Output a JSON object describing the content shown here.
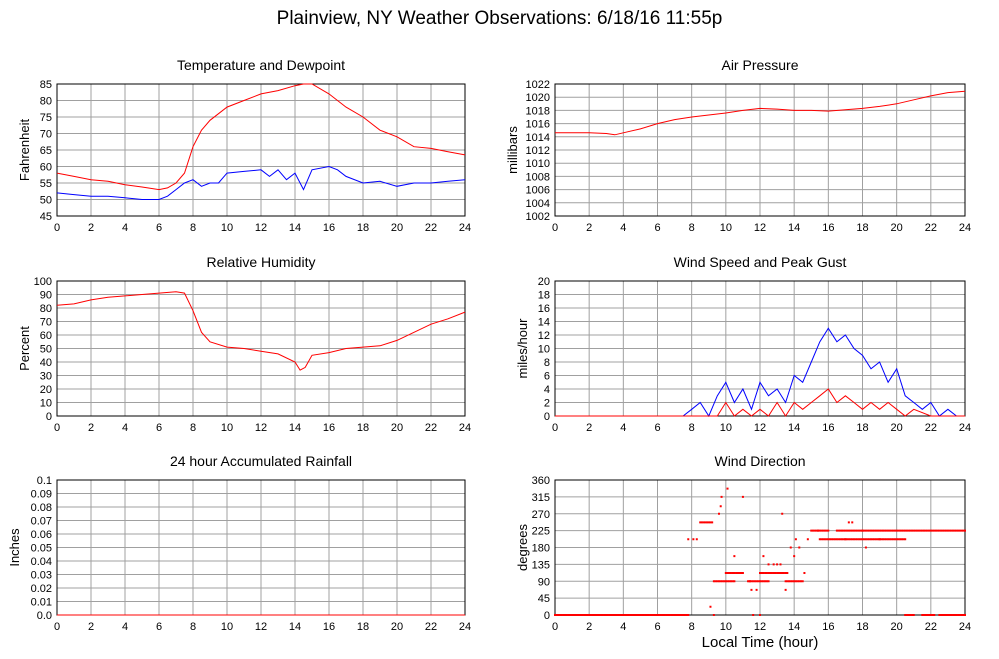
{
  "page": {
    "title": "Plainview, NY Weather Observations: 6/18/16 11:55p",
    "shared_xlabel": "Local Time (hour)"
  },
  "colors": {
    "red": "#ff0000",
    "blue": "#0000ff",
    "grid": "#a0a0a0"
  },
  "chart_data": [
    {
      "id": "temp",
      "type": "line",
      "title": "Temperature and Dewpoint",
      "ylabel": "Fahrenheit",
      "xlim": [
        0,
        24
      ],
      "ylim": [
        45,
        85
      ],
      "x_ticks": [
        0,
        2,
        4,
        6,
        8,
        10,
        12,
        14,
        16,
        18,
        20,
        22,
        24
      ],
      "y_ticks": [
        45,
        50,
        55,
        60,
        65,
        70,
        75,
        80,
        85
      ],
      "grid": true,
      "series": [
        {
          "color": "red",
          "points": [
            [
              0,
              58
            ],
            [
              1,
              57
            ],
            [
              2,
              56
            ],
            [
              3,
              55.5
            ],
            [
              4,
              54.5
            ],
            [
              5,
              53.8
            ],
            [
              6,
              53
            ],
            [
              6.5,
              53.5
            ],
            [
              7,
              55
            ],
            [
              7.5,
              58
            ],
            [
              8,
              66
            ],
            [
              8.5,
              71
            ],
            [
              9,
              74
            ],
            [
              9.5,
              76
            ],
            [
              10,
              78
            ],
            [
              11,
              80
            ],
            [
              12,
              82
            ],
            [
              13,
              83
            ],
            [
              14,
              84.5
            ],
            [
              14.5,
              85
            ],
            [
              15,
              85
            ],
            [
              16,
              82
            ],
            [
              17,
              78
            ],
            [
              18,
              75
            ],
            [
              19,
              71
            ],
            [
              20,
              69
            ],
            [
              21,
              66
            ],
            [
              22,
              65.5
            ],
            [
              23,
              64.5
            ],
            [
              24,
              63.5
            ]
          ]
        },
        {
          "color": "blue",
          "points": [
            [
              0,
              52
            ],
            [
              1,
              51.5
            ],
            [
              2,
              51
            ],
            [
              3,
              51
            ],
            [
              4,
              50.5
            ],
            [
              5,
              50
            ],
            [
              6,
              50
            ],
            [
              6.5,
              51
            ],
            [
              7,
              53
            ],
            [
              7.5,
              55
            ],
            [
              8,
              56
            ],
            [
              8.5,
              54
            ],
            [
              9,
              55
            ],
            [
              9.5,
              55
            ],
            [
              10,
              58
            ],
            [
              11,
              58.5
            ],
            [
              12,
              59
            ],
            [
              12.5,
              57
            ],
            [
              13,
              59
            ],
            [
              13.5,
              56
            ],
            [
              14,
              58
            ],
            [
              14.5,
              53
            ],
            [
              15,
              59
            ],
            [
              16,
              60
            ],
            [
              16.5,
              59
            ],
            [
              17,
              57
            ],
            [
              18,
              55
            ],
            [
              19,
              55.5
            ],
            [
              20,
              54
            ],
            [
              21,
              55
            ],
            [
              22,
              55
            ],
            [
              23,
              55.5
            ],
            [
              24,
              56
            ]
          ]
        }
      ]
    },
    {
      "id": "press",
      "type": "line",
      "title": "Air Pressure",
      "ylabel": "millibars",
      "xlim": [
        0,
        24
      ],
      "ylim": [
        1002,
        1022
      ],
      "x_ticks": [
        0,
        2,
        4,
        6,
        8,
        10,
        12,
        14,
        16,
        18,
        20,
        22,
        24
      ],
      "y_ticks": [
        1002,
        1004,
        1006,
        1008,
        1010,
        1012,
        1014,
        1016,
        1018,
        1020,
        1022
      ],
      "grid": true,
      "series": [
        {
          "color": "red",
          "points": [
            [
              0,
              1014.6
            ],
            [
              2,
              1014.6
            ],
            [
              3,
              1014.5
            ],
            [
              3.5,
              1014.3
            ],
            [
              4,
              1014.6
            ],
            [
              5,
              1015.2
            ],
            [
              6,
              1016
            ],
            [
              7,
              1016.6
            ],
            [
              8,
              1017
            ],
            [
              9,
              1017.3
            ],
            [
              10,
              1017.6
            ],
            [
              11,
              1018
            ],
            [
              12,
              1018.3
            ],
            [
              13,
              1018.2
            ],
            [
              14,
              1018
            ],
            [
              15,
              1018
            ],
            [
              16,
              1017.9
            ],
            [
              17,
              1018.1
            ],
            [
              18,
              1018.3
            ],
            [
              19,
              1018.6
            ],
            [
              20,
              1019
            ],
            [
              21,
              1019.6
            ],
            [
              22,
              1020.2
            ],
            [
              23,
              1020.7
            ],
            [
              24,
              1020.9
            ]
          ]
        }
      ]
    },
    {
      "id": "rh",
      "type": "line",
      "title": "Relative Humidity",
      "ylabel": "Percent",
      "xlim": [
        0,
        24
      ],
      "ylim": [
        0,
        100
      ],
      "x_ticks": [
        0,
        2,
        4,
        6,
        8,
        10,
        12,
        14,
        16,
        18,
        20,
        22,
        24
      ],
      "y_ticks": [
        0,
        10,
        20,
        30,
        40,
        50,
        60,
        70,
        80,
        90,
        100
      ],
      "grid": true,
      "series": [
        {
          "color": "red",
          "points": [
            [
              0,
              82
            ],
            [
              1,
              83
            ],
            [
              2,
              86
            ],
            [
              3,
              88
            ],
            [
              4,
              89
            ],
            [
              5,
              90
            ],
            [
              6,
              91
            ],
            [
              7,
              92
            ],
            [
              7.5,
              91
            ],
            [
              8,
              78
            ],
            [
              8.5,
              62
            ],
            [
              9,
              55
            ],
            [
              10,
              51
            ],
            [
              11,
              50
            ],
            [
              12,
              48
            ],
            [
              13,
              46
            ],
            [
              14,
              40
            ],
            [
              14.3,
              34
            ],
            [
              14.6,
              36
            ],
            [
              15,
              45
            ],
            [
              16,
              47
            ],
            [
              17,
              50
            ],
            [
              18,
              51
            ],
            [
              19,
              52
            ],
            [
              20,
              56
            ],
            [
              21,
              62
            ],
            [
              22,
              68
            ],
            [
              23,
              72
            ],
            [
              24,
              77
            ]
          ]
        }
      ]
    },
    {
      "id": "wind",
      "type": "line",
      "title": "Wind Speed and Peak Gust",
      "ylabel": "miles/hour",
      "xlim": [
        0,
        24
      ],
      "ylim": [
        0,
        20
      ],
      "x_ticks": [
        0,
        2,
        4,
        6,
        8,
        10,
        12,
        14,
        16,
        18,
        20,
        22,
        24
      ],
      "y_ticks": [
        0,
        2,
        4,
        6,
        8,
        10,
        12,
        14,
        16,
        18,
        20
      ],
      "grid": true,
      "series": [
        {
          "color": "blue",
          "points": [
            [
              0,
              0
            ],
            [
              7.5,
              0
            ],
            [
              8,
              1
            ],
            [
              8.5,
              2
            ],
            [
              9,
              0
            ],
            [
              9.5,
              3
            ],
            [
              10,
              5
            ],
            [
              10.5,
              2
            ],
            [
              11,
              4
            ],
            [
              11.5,
              1
            ],
            [
              12,
              5
            ],
            [
              12.5,
              3
            ],
            [
              13,
              4
            ],
            [
              13.5,
              2
            ],
            [
              14,
              6
            ],
            [
              14.5,
              5
            ],
            [
              15,
              8
            ],
            [
              15.5,
              11
            ],
            [
              16,
              13
            ],
            [
              16.5,
              11
            ],
            [
              17,
              12
            ],
            [
              17.5,
              10
            ],
            [
              18,
              9
            ],
            [
              18.5,
              7
            ],
            [
              19,
              8
            ],
            [
              19.5,
              5
            ],
            [
              20,
              7
            ],
            [
              20.5,
              3
            ],
            [
              21,
              2
            ],
            [
              21.5,
              1
            ],
            [
              22,
              2
            ],
            [
              22.5,
              0
            ],
            [
              23,
              1
            ],
            [
              23.5,
              0
            ],
            [
              24,
              0
            ]
          ]
        },
        {
          "color": "red",
          "points": [
            [
              0,
              0
            ],
            [
              9.5,
              0
            ],
            [
              10,
              2
            ],
            [
              10.5,
              0
            ],
            [
              11,
              1
            ],
            [
              11.5,
              0
            ],
            [
              12,
              1
            ],
            [
              12.5,
              0
            ],
            [
              13,
              2
            ],
            [
              13.5,
              0
            ],
            [
              14,
              2
            ],
            [
              14.5,
              1
            ],
            [
              15,
              2
            ],
            [
              15.5,
              3
            ],
            [
              16,
              4
            ],
            [
              16.5,
              2
            ],
            [
              17,
              3
            ],
            [
              17.5,
              2
            ],
            [
              18,
              1
            ],
            [
              18.5,
              2
            ],
            [
              19,
              1
            ],
            [
              19.5,
              2
            ],
            [
              20,
              1
            ],
            [
              20.5,
              0
            ],
            [
              21,
              1
            ],
            [
              22,
              0
            ],
            [
              24,
              0
            ]
          ]
        }
      ]
    },
    {
      "id": "rain",
      "type": "line",
      "title": "24 hour Accumulated Rainfall",
      "ylabel": "Inches",
      "xlim": [
        0,
        24
      ],
      "ylim": [
        0,
        0.1
      ],
      "x_ticks": [
        0,
        2,
        4,
        6,
        8,
        10,
        12,
        14,
        16,
        18,
        20,
        22,
        24
      ],
      "y_ticks": [
        0.0,
        0.01,
        0.02,
        0.03,
        0.04,
        0.05,
        0.06,
        0.07,
        0.08,
        0.09,
        0.1
      ],
      "y_tick_labels": [
        "0.0",
        "0.01",
        "0.02",
        "0.03",
        "0.04",
        "0.05",
        "0.06",
        "0.07",
        "0.08",
        "0.09",
        "0.1"
      ],
      "grid": true,
      "series": [
        {
          "color": "red",
          "points": [
            [
              0,
              0
            ],
            [
              24,
              0
            ]
          ]
        }
      ]
    },
    {
      "id": "dir",
      "type": "scatter",
      "title": "Wind Direction",
      "ylabel": "degrees",
      "xlim": [
        0,
        24
      ],
      "ylim": [
        0,
        360
      ],
      "x_ticks": [
        0,
        2,
        4,
        6,
        8,
        10,
        12,
        14,
        16,
        18,
        20,
        22,
        24
      ],
      "y_ticks": [
        0,
        45,
        90,
        135,
        180,
        225,
        270,
        315,
        360
      ],
      "grid": true,
      "series": [
        {
          "color": "red",
          "segments": [
            [
              0,
              7.8,
              0
            ],
            [
              8.5,
              9.2,
              247
            ],
            [
              9.3,
              10.5,
              90
            ],
            [
              10,
              11,
              112
            ],
            [
              11.3,
              12.5,
              90
            ],
            [
              12,
              13.5,
              112
            ],
            [
              13.5,
              14.5,
              90
            ],
            [
              15,
              16,
              225
            ],
            [
              15.5,
              17,
              202
            ],
            [
              16.5,
              18,
              225
            ],
            [
              17,
              19,
              202
            ],
            [
              19,
              20.5,
              202
            ],
            [
              18,
              24,
              225
            ],
            [
              20.5,
              21,
              0
            ],
            [
              21.5,
              22.2,
              0
            ],
            [
              22.5,
              24,
              0
            ]
          ],
          "points": [
            [
              7.8,
              202
            ],
            [
              8.1,
              202
            ],
            [
              8.3,
              202
            ],
            [
              9.1,
              22
            ],
            [
              9.3,
              0
            ],
            [
              9.6,
              270
            ],
            [
              9.7,
              290
            ],
            [
              9.75,
              315
            ],
            [
              10.1,
              337
            ],
            [
              10.5,
              157
            ],
            [
              11,
              315
            ],
            [
              11.4,
              90
            ],
            [
              11.5,
              67
            ],
            [
              11.8,
              67
            ],
            [
              12.2,
              157
            ],
            [
              12.5,
              135
            ],
            [
              12.8,
              135
            ],
            [
              13,
              135
            ],
            [
              13.2,
              135
            ],
            [
              13.3,
              270
            ],
            [
              13.5,
              67
            ],
            [
              13.6,
              112
            ],
            [
              13.8,
              180
            ],
            [
              14,
              157
            ],
            [
              14.1,
              202
            ],
            [
              14.3,
              180
            ],
            [
              14.6,
              112
            ],
            [
              14.8,
              202
            ],
            [
              15.4,
              225
            ],
            [
              17.2,
              247
            ],
            [
              17.4,
              247
            ],
            [
              18.2,
              180
            ],
            [
              11.6,
              0
            ],
            [
              12,
              0
            ]
          ]
        }
      ]
    }
  ]
}
